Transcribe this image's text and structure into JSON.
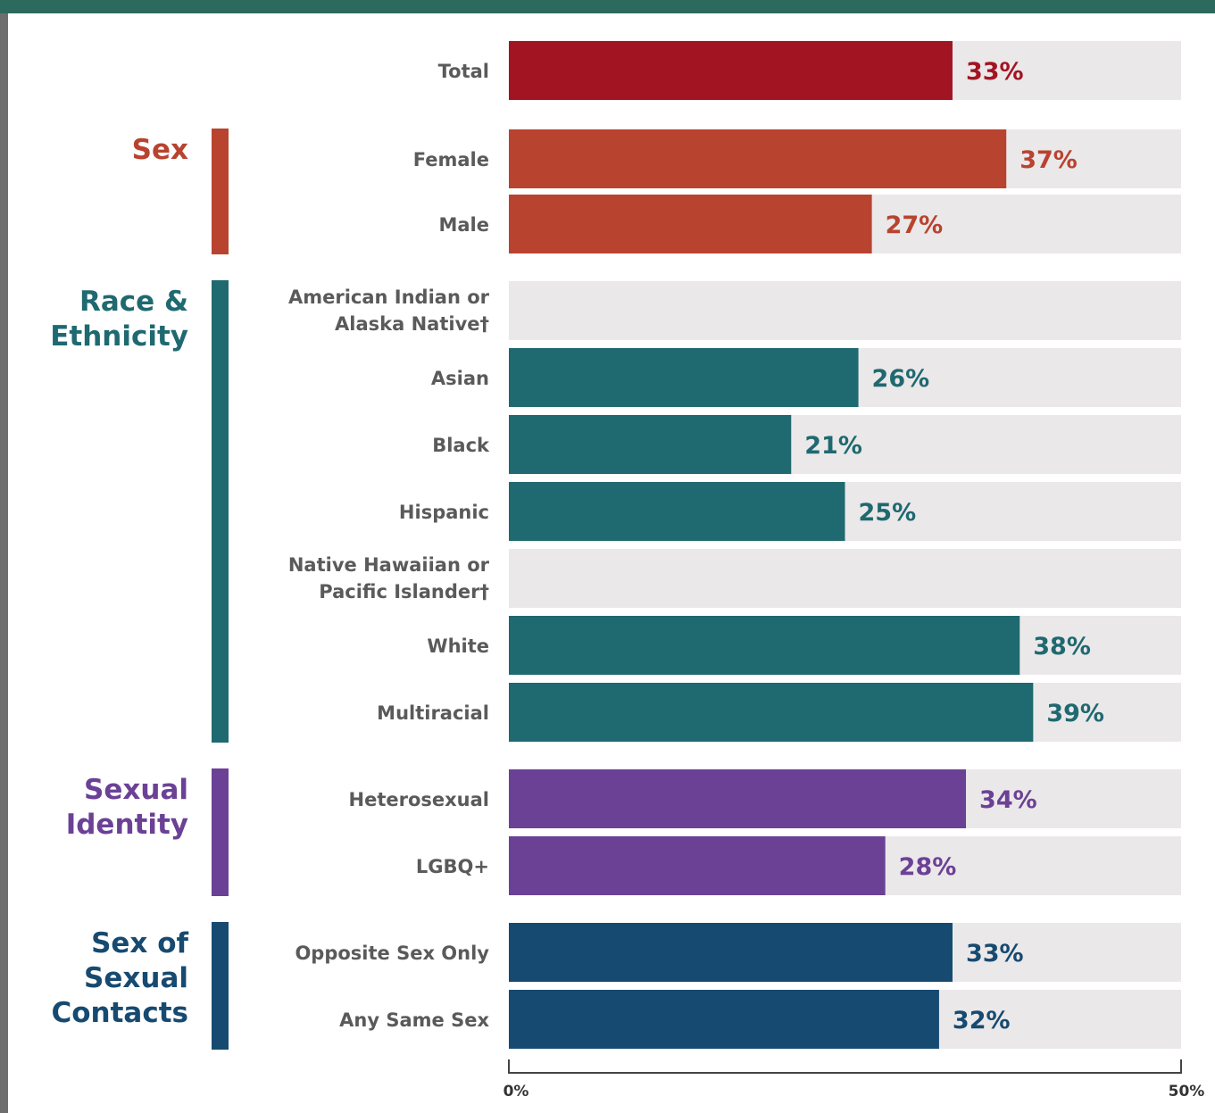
{
  "chart_data": {
    "type": "bar",
    "orientation": "horizontal",
    "categories": [
      "Total",
      "Female",
      "Male",
      "American Indian or Alaska Native†",
      "Asian",
      "Black",
      "Hispanic",
      "Native Hawaiian or Pacific Islander†",
      "White",
      "Multiracial",
      "Heterosexual",
      "LGBQ+",
      "Opposite Sex Only",
      "Any Same Sex"
    ],
    "values": [
      33,
      37,
      27,
      null,
      26,
      21,
      25,
      null,
      38,
      39,
      34,
      28,
      33,
      32
    ],
    "value_labels": [
      "33%",
      "37%",
      "27%",
      "",
      "26%",
      "21%",
      "25%",
      "",
      "38%",
      "39%",
      "34%",
      "28%",
      "33%",
      "32%"
    ],
    "groups": [
      {
        "name": "",
        "members": [
          "Total"
        ],
        "color": "#a31422"
      },
      {
        "name": "Sex",
        "members": [
          "Female",
          "Male"
        ],
        "color": "#b8432f"
      },
      {
        "name": "Race & Ethnicity",
        "members": [
          "American Indian or Alaska Native†",
          "Asian",
          "Black",
          "Hispanic",
          "Native Hawaiian or Pacific Islander†",
          "White",
          "Multiracial"
        ],
        "color": "#1f6970"
      },
      {
        "name": "Sexual Identity",
        "members": [
          "Heterosexual",
          "LGBQ+"
        ],
        "color": "#6b4196"
      },
      {
        "name": "Sex of Sexual Contacts",
        "members": [
          "Opposite Sex Only",
          "Any Same Sex"
        ],
        "color": "#174a70"
      }
    ],
    "xlim": [
      0,
      50
    ],
    "x_tick_labels": [
      "0%",
      "50%"
    ],
    "title": "",
    "xlabel": "",
    "ylabel": "",
    "grid": false,
    "track_color": "#ebe8e9"
  }
}
